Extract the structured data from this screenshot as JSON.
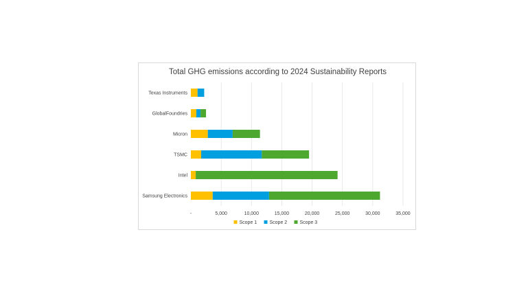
{
  "chart_data": {
    "type": "bar",
    "orientation": "horizontal",
    "stacked": true,
    "title": "Total GHG emissions according to 2024 Sustainability Reports",
    "categories": [
      "Texas Instruments",
      "GlobalFoundries",
      "Micron",
      "TSMC",
      "Intel",
      "Samsung Electronics"
    ],
    "series": [
      {
        "name": "Scope 1",
        "color": "#FFC000",
        "values": [
          1100,
          900,
          2800,
          1700,
          800,
          3600
        ]
      },
      {
        "name": "Scope 2",
        "color": "#00A0E0",
        "values": [
          1100,
          700,
          4100,
          10000,
          0,
          9300
        ]
      },
      {
        "name": "Scope 3",
        "color": "#4EA72E",
        "values": [
          0,
          900,
          4500,
          7800,
          23400,
          18300
        ]
      }
    ],
    "xlim": [
      0,
      35000
    ],
    "xticks": [
      0,
      5000,
      10000,
      15000,
      20000,
      25000,
      30000,
      35000
    ],
    "xtick_labels": [
      "-",
      "5,000",
      "10,000",
      "15,000",
      "20,000",
      "25,000",
      "30,000",
      "35,000"
    ],
    "grid": true,
    "legend_position": "bottom"
  }
}
